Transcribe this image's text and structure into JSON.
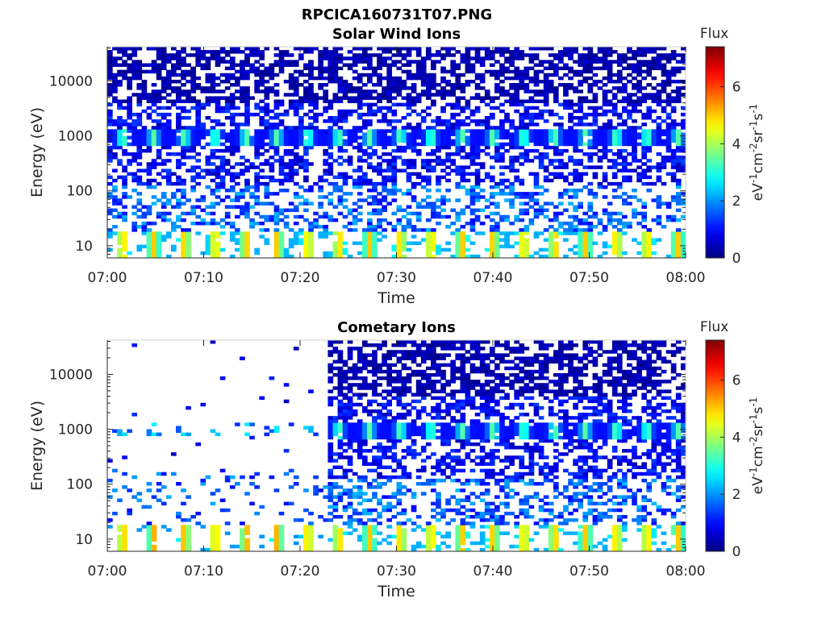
{
  "figure": {
    "title": "RPCICA160731T07.PNG"
  },
  "colormap": {
    "name": "jet",
    "stops": [
      "#00007f",
      "#0000ff",
      "#007fff",
      "#00ffff",
      "#7fff7f",
      "#ffff00",
      "#ff7f00",
      "#ff0000",
      "#7f0000"
    ]
  },
  "chart_data": [
    {
      "type": "heatmap",
      "title": "Solar Wind Ions",
      "xlabel": "Time",
      "ylabel": "Energy (eV)",
      "x_range": [
        "07:00",
        "08:00"
      ],
      "x_ticks": [
        "07:00",
        "07:10",
        "07:20",
        "07:30",
        "07:40",
        "07:50",
        "08:00"
      ],
      "y_scale": "log",
      "y_range": [
        6,
        42000
      ],
      "y_ticks": [
        "10",
        "100",
        "1000",
        "10000"
      ],
      "features": {
        "background_energy_range_eV": [
          6,
          40000
        ],
        "pulsed_peak_energy_eV": 950,
        "pulsed_peak_period_min": 3.2,
        "low_energy_band_eV": [
          6,
          18
        ],
        "cometary_onset": null
      },
      "colorbar": {
        "title": "Flux",
        "label": "eV-1cm-2sr-1s-1",
        "label_parts": [
          "eV",
          "-1",
          "cm",
          "-2",
          "sr",
          "-1",
          "s",
          "-1"
        ],
        "range": [
          0,
          7.4
        ],
        "ticks": [
          "0",
          "2",
          "4",
          "6"
        ]
      }
    },
    {
      "type": "heatmap",
      "title": "Cometary Ions",
      "xlabel": "Time",
      "ylabel": "Energy (eV)",
      "x_range": [
        "07:00",
        "08:00"
      ],
      "x_ticks": [
        "07:00",
        "07:10",
        "07:20",
        "07:30",
        "07:40",
        "07:50",
        "08:00"
      ],
      "y_scale": "log",
      "y_range": [
        6,
        42000
      ],
      "y_ticks": [
        "10",
        "100",
        "1000",
        "10000"
      ],
      "features": {
        "background_energy_range_eV": [
          6,
          40000
        ],
        "pulsed_peak_energy_eV": 950,
        "pulsed_peak_period_min": 3.2,
        "low_energy_band_eV": [
          6,
          18
        ],
        "sparse_before": "07:23",
        "dense_after": "07:23"
      },
      "colorbar": {
        "title": "Flux",
        "label": "eV-1cm-2sr-1s-1",
        "label_parts": [
          "eV",
          "-1",
          "cm",
          "-2",
          "sr",
          "-1",
          "s",
          "-1"
        ],
        "range": [
          0,
          7.4
        ],
        "ticks": [
          "0",
          "2",
          "4",
          "6"
        ]
      }
    }
  ]
}
